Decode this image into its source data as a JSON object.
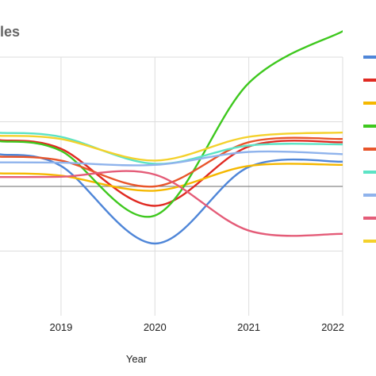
{
  "chart_data": {
    "type": "line",
    "title": "les",
    "xlabel": "Year",
    "ylabel": "",
    "x": [
      2019,
      2020,
      2021,
      2022
    ],
    "xlim": [
      2018.35,
      2022
    ],
    "ylim": [
      -6,
      6
    ],
    "baseline": 0,
    "grid": true,
    "legend_position": "right",
    "series": [
      {
        "color": "#4f86d8",
        "values": [
          0.95,
          -2.65,
          0.9,
          1.15
        ]
      },
      {
        "color": "#e02a22",
        "values": [
          1.75,
          -0.9,
          1.85,
          2.05
        ]
      },
      {
        "color": "#f5b800",
        "values": [
          0.5,
          -0.2,
          0.95,
          1.0
        ]
      },
      {
        "color": "#3ec81e",
        "values": [
          1.65,
          -1.35,
          4.8,
          7.2
        ]
      },
      {
        "color": "#e8552a",
        "values": [
          1.2,
          0.0,
          2.05,
          2.2
        ]
      },
      {
        "color": "#5ce3c5",
        "values": [
          2.3,
          1.05,
          1.9,
          1.95
        ]
      },
      {
        "color": "#8fb3ec",
        "values": [
          1.1,
          1.0,
          1.6,
          1.5
        ]
      },
      {
        "color": "#e45c78",
        "values": [
          0.45,
          0.55,
          -2.05,
          -2.2
        ]
      },
      {
        "color": "#f4d12b",
        "values": [
          2.2,
          1.2,
          2.3,
          2.5
        ]
      }
    ]
  }
}
